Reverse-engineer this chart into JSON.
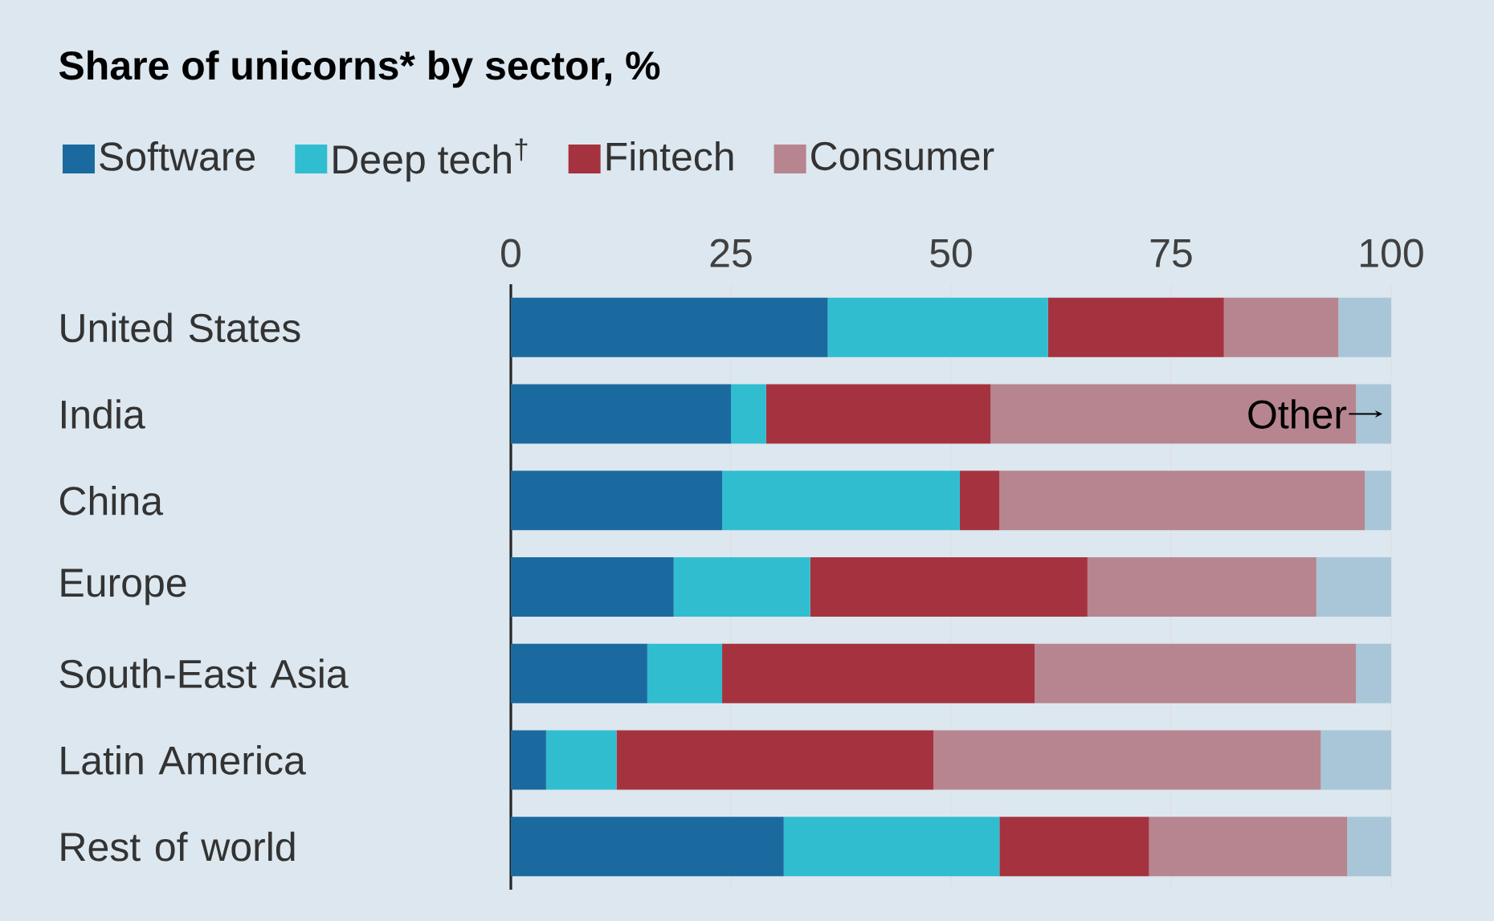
{
  "chart_data": {
    "type": "bar",
    "orientation": "horizontal",
    "stacked": true,
    "title": "Share of unicorns* by sector, %",
    "categories": [
      "United States",
      "India",
      "China",
      "Europe",
      "South-East Asia",
      "Latin America",
      "Rest of world"
    ],
    "series": [
      {
        "name": "Software",
        "color": "#1b6a9f",
        "values": [
          36,
          25,
          24,
          18.5,
          15.5,
          4,
          31
        ]
      },
      {
        "name": "Deep tech$^{†}$",
        "color": "#30bdd0",
        "values": [
          25,
          4,
          27,
          15.5,
          8.5,
          8,
          24.5
        ]
      },
      {
        "name": "Fintech",
        "color": "#a5333f",
        "values": [
          20,
          25.5,
          4.5,
          31.5,
          35.5,
          36,
          17
        ]
      },
      {
        "name": "Consumer",
        "color": "#b7858f",
        "values": [
          13,
          41.5,
          41.5,
          26,
          36.5,
          44,
          22.5
        ]
      },
      {
        "name": "Other",
        "color": "#a8c6d8",
        "values": [
          6,
          4,
          3,
          8.5,
          4,
          8,
          5
        ]
      }
    ],
    "xlim": [
      0,
      100
    ],
    "xticks": [
      0,
      25,
      50,
      75,
      100
    ],
    "grid": "x",
    "legend": "top left"
  }
}
